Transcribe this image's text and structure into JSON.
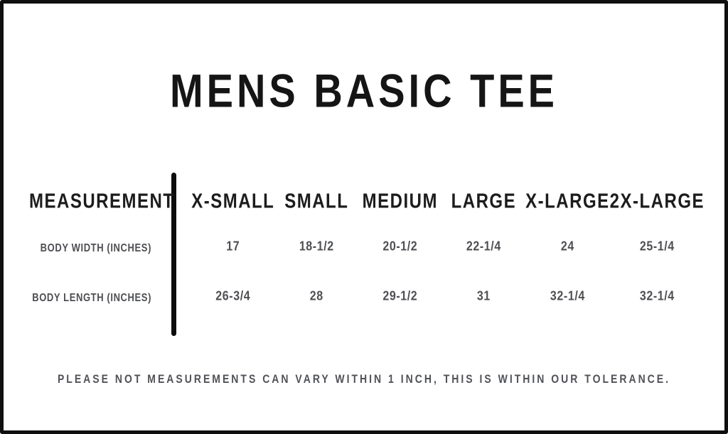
{
  "page": {
    "title": "MENS BASIC TEE",
    "footer_note": "PLEASE NOT MEASUREMENTS CAN VARY WITHIN 1 INCH, THIS IS WITHIN OUR TOLERANCE."
  },
  "table": {
    "measurement_header": "MEASUREMENT",
    "size_headers": [
      "X-SMALL",
      "SMALL",
      "MEDIUM",
      "LARGE",
      "X-LARGE",
      "2X-LARGE"
    ],
    "rows": [
      {
        "label": "BODY WIDTH (INCHES)",
        "values": [
          "17",
          "18-1/2",
          "20-1/2",
          "22-1/4",
          "24",
          "25-1/4"
        ]
      },
      {
        "label": "BODY LENGTH (INCHES)",
        "values": [
          "26-3/4",
          "28",
          "29-1/2",
          "31",
          "32-1/4",
          "32-1/4"
        ]
      }
    ]
  },
  "colors": {
    "frame": "#0f0f0f",
    "title_text": "#151515",
    "header_text": "#1c1c1c",
    "body_text": "#4e4f53"
  }
}
